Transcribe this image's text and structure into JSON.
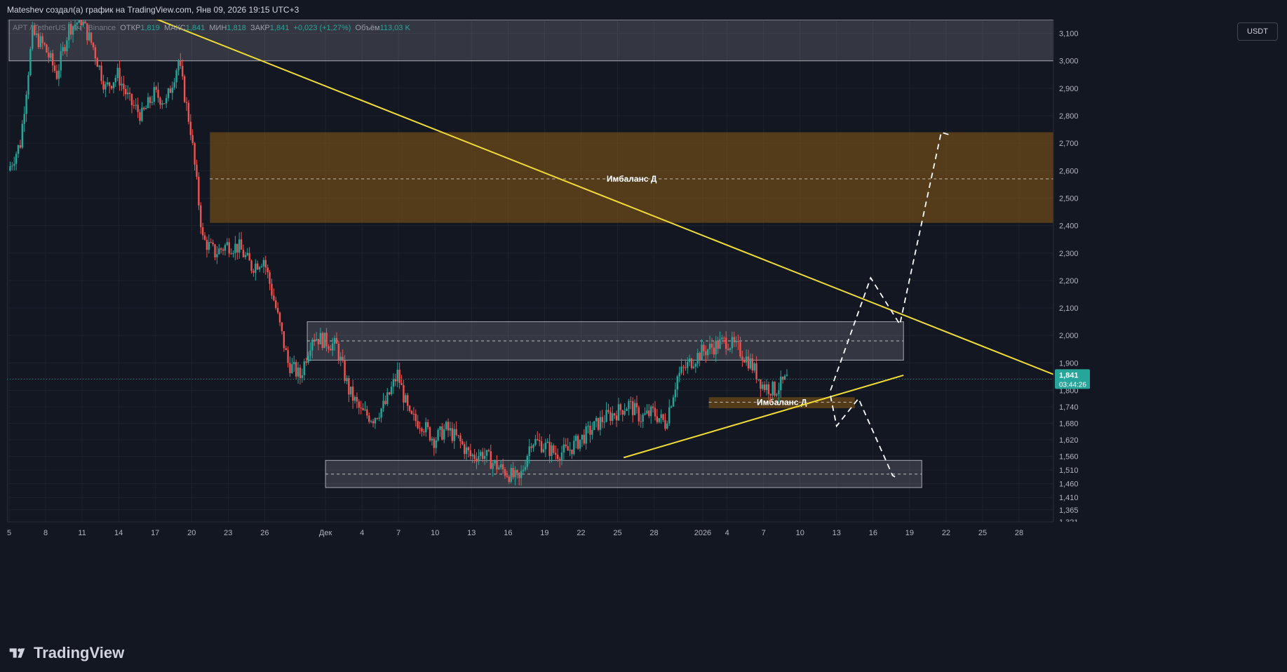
{
  "header": {
    "attribution": "Mateshev создал(а) график на TradingView.com, Янв 09, 2026 19:15 UTC+3"
  },
  "legend": {
    "symbol": "APT / TetherUS · 4ч · Binance",
    "open_label": "ОТКР",
    "open": "1,819",
    "high_label": "МАКС",
    "high": "1,841",
    "low_label": "МИН",
    "low": "1,818",
    "close_label": "ЗАКР",
    "close": "1,841",
    "change": "+0,023 (+1,27%)",
    "volume_label": "Объём",
    "volume": "113,03 K"
  },
  "currency_button": "USDT",
  "price_badge": {
    "price": "1,841",
    "timer": "03:44:26",
    "color": "#26a69a"
  },
  "brand": "TradingView",
  "colors": {
    "background": "#131722",
    "up": "#26a69a",
    "down": "#ef5350",
    "trendline": "#f0dc32",
    "imbalance_zone": "#8a5a12",
    "gray_zone": "#ffffff"
  },
  "chart_data": {
    "type": "candlestick",
    "y_ticks": [
      "1,321",
      "1,365",
      "1,410",
      "1,460",
      "1,510",
      "1,560",
      "1,620",
      "1,680",
      "1,740",
      "1,800",
      "1,900",
      "2,000",
      "2,100",
      "2,200",
      "2,300",
      "2,400",
      "2,500",
      "2,600",
      "2,700",
      "2,800",
      "2,900",
      "3,000",
      "3,100"
    ],
    "ylim": [
      1.321,
      3.15
    ],
    "x_ticks": [
      {
        "label": "5",
        "day": 0
      },
      {
        "label": "8",
        "day": 3
      },
      {
        "label": "11",
        "day": 6
      },
      {
        "label": "14",
        "day": 9
      },
      {
        "label": "17",
        "day": 12
      },
      {
        "label": "20",
        "day": 15
      },
      {
        "label": "23",
        "day": 18
      },
      {
        "label": "26",
        "day": 21
      },
      {
        "label": "Дек",
        "day": 26
      },
      {
        "label": "4",
        "day": 29
      },
      {
        "label": "7",
        "day": 32
      },
      {
        "label": "10",
        "day": 35
      },
      {
        "label": "13",
        "day": 38
      },
      {
        "label": "16",
        "day": 41
      },
      {
        "label": "19",
        "day": 44
      },
      {
        "label": "22",
        "day": 47
      },
      {
        "label": "25",
        "day": 50
      },
      {
        "label": "28",
        "day": 53
      },
      {
        "label": "2026",
        "day": 57
      },
      {
        "label": "4",
        "day": 59
      },
      {
        "label": "7",
        "day": 62
      },
      {
        "label": "10",
        "day": 65
      },
      {
        "label": "13",
        "day": 68
      },
      {
        "label": "16",
        "day": 71
      },
      {
        "label": "19",
        "day": 74
      },
      {
        "label": "22",
        "day": 77
      },
      {
        "label": "25",
        "day": 80
      },
      {
        "label": "28",
        "day": 83
      }
    ],
    "price_path": [
      [
        0,
        2.6
      ],
      [
        1,
        2.7
      ],
      [
        2,
        3.1
      ],
      [
        3,
        3.05
      ],
      [
        4,
        2.95
      ],
      [
        5,
        3.12
      ],
      [
        6,
        3.15
      ],
      [
        7,
        3.05
      ],
      [
        8,
        2.9
      ],
      [
        9,
        2.95
      ],
      [
        10,
        2.85
      ],
      [
        11,
        2.8
      ],
      [
        12,
        2.88
      ],
      [
        13,
        2.85
      ],
      [
        14,
        3.0
      ],
      [
        15,
        2.75
      ],
      [
        16,
        2.35
      ],
      [
        17,
        2.3
      ],
      [
        18,
        2.33
      ],
      [
        19,
        2.32
      ],
      [
        20,
        2.25
      ],
      [
        21,
        2.28
      ],
      [
        22,
        2.1
      ],
      [
        23,
        1.9
      ],
      [
        24,
        1.85
      ],
      [
        25,
        2.0
      ],
      [
        26,
        1.98
      ],
      [
        27,
        1.96
      ],
      [
        28,
        1.8
      ],
      [
        29,
        1.72
      ],
      [
        30,
        1.7
      ],
      [
        31,
        1.75
      ],
      [
        32,
        1.86
      ],
      [
        33,
        1.7
      ],
      [
        34,
        1.68
      ],
      [
        35,
        1.62
      ],
      [
        36,
        1.66
      ],
      [
        37,
        1.62
      ],
      [
        38,
        1.56
      ],
      [
        39,
        1.57
      ],
      [
        40,
        1.53
      ],
      [
        41,
        1.5
      ],
      [
        42,
        1.47
      ],
      [
        43,
        1.62
      ],
      [
        44,
        1.6
      ],
      [
        45,
        1.57
      ],
      [
        46,
        1.58
      ],
      [
        47,
        1.62
      ],
      [
        48,
        1.66
      ],
      [
        49,
        1.7
      ],
      [
        50,
        1.72
      ],
      [
        51,
        1.75
      ],
      [
        52,
        1.7
      ],
      [
        53,
        1.72
      ],
      [
        54,
        1.68
      ],
      [
        55,
        1.85
      ],
      [
        56,
        1.9
      ],
      [
        57,
        1.94
      ],
      [
        58,
        1.96
      ],
      [
        59,
        1.98
      ],
      [
        60,
        1.95
      ],
      [
        61,
        1.9
      ],
      [
        62,
        1.82
      ],
      [
        63,
        1.8
      ],
      [
        64,
        1.841
      ]
    ],
    "zones": [
      {
        "kind": "gray",
        "top": 3.15,
        "bottom": 3.0,
        "x1": 0,
        "x2": 88,
        "mid": null
      },
      {
        "kind": "imbalance",
        "top": 2.74,
        "bottom": 2.41,
        "x1": 16.5,
        "x2": 88,
        "mid": 2.57,
        "label": "Имбаланс Д"
      },
      {
        "kind": "gray",
        "top": 2.05,
        "bottom": 1.91,
        "x1": 24.5,
        "x2": 73.5,
        "mid": 1.98
      },
      {
        "kind": "imbalance",
        "top": 1.775,
        "bottom": 1.735,
        "x1": 57.5,
        "x2": 69.5,
        "mid": 1.757,
        "label": "Имбаланс Д"
      },
      {
        "kind": "gray",
        "top": 1.545,
        "bottom": 1.446,
        "x1": 26,
        "x2": 75,
        "mid": 1.495
      }
    ],
    "trendlines": [
      {
        "x1": 10.5,
        "y1": 3.18,
        "x2": 88,
        "y2": 1.82
      },
      {
        "x1": 50.5,
        "y1": 1.555,
        "x2": 73.5,
        "y2": 1.855
      }
    ],
    "projections": [
      [
        [
          67.5,
          1.8
        ],
        [
          70.8,
          2.21
        ],
        [
          73.2,
          2.04
        ],
        [
          76.6,
          2.74
        ],
        [
          77.3,
          2.73
        ]
      ],
      [
        [
          67.5,
          1.78
        ],
        [
          68,
          1.67
        ],
        [
          69.8,
          1.77
        ],
        [
          72.6,
          1.49
        ],
        [
          73,
          1.48
        ]
      ]
    ]
  }
}
